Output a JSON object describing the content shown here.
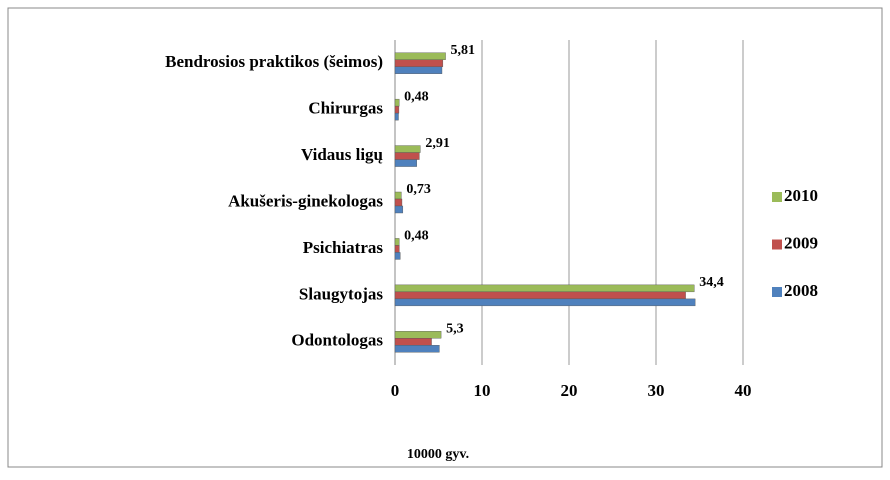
{
  "chart_data": {
    "type": "bar",
    "orientation": "horizontal",
    "categories": [
      "Bendrosios praktikos (šeimos)",
      "Chirurgas",
      "Vidaus ligų",
      "Akušeris-ginekologas",
      "Psichiatras",
      "Slaugytojas",
      "Odontologas"
    ],
    "series": [
      {
        "name": "2010",
        "color": "#9bbb59",
        "values": [
          5.81,
          0.48,
          2.91,
          0.73,
          0.48,
          34.4,
          5.3
        ],
        "value_labels": [
          "5,81",
          "0,48",
          "2,91",
          "0,73",
          "0,48",
          "34,4",
          "5,3"
        ]
      },
      {
        "name": "2009",
        "color": "#c0504d",
        "values": [
          5.5,
          0.45,
          2.8,
          0.8,
          0.5,
          33.4,
          4.2
        ]
      },
      {
        "name": "2008",
        "color": "#4f81bd",
        "values": [
          5.4,
          0.4,
          2.5,
          0.9,
          0.6,
          34.5,
          5.1
        ]
      }
    ],
    "xlim": [
      0,
      40
    ],
    "xticks": [
      0,
      10,
      20,
      30,
      40
    ],
    "xlabel": "10000 gyv.",
    "grid": true,
    "legend": "right"
  }
}
